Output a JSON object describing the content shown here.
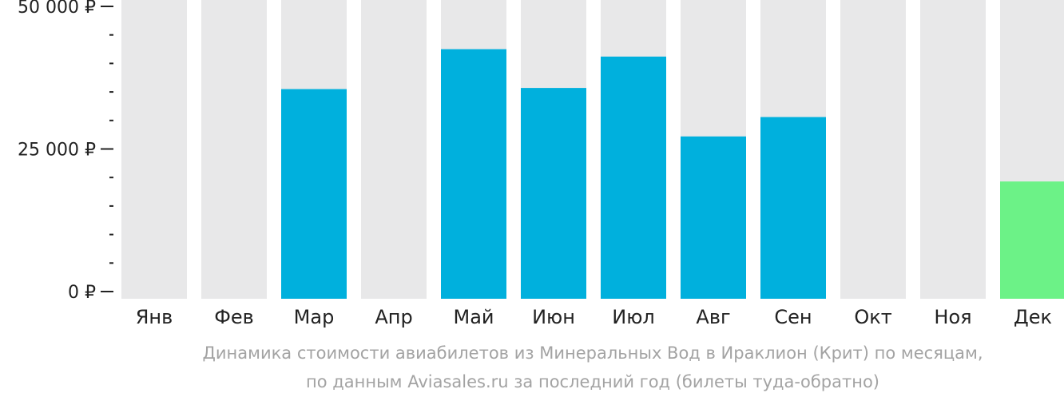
{
  "chart_data": {
    "type": "bar",
    "categories": [
      "Янв",
      "Фев",
      "Мар",
      "Апр",
      "Май",
      "Июн",
      "Июл",
      "Авг",
      "Сен",
      "Окт",
      "Ноя",
      "Дек"
    ],
    "values": [
      null,
      null,
      35500,
      null,
      42500,
      35700,
      41200,
      27200,
      30600,
      null,
      null,
      19300
    ],
    "ylim": [
      0,
      50000
    ],
    "y_ticks": [
      {
        "value": 0,
        "label": "0 ₽"
      },
      {
        "value": 25000,
        "label": "25 000 ₽"
      },
      {
        "value": 50000,
        "label": "50 000 ₽"
      }
    ],
    "minor_tick_step": 5000,
    "caption_lines": [
      "Динамика стоимости авиабилетов из Минеральных Вод в Ираклион (Крит) по месяцам,",
      "по данным Aviasales.ru за последний год (билеты туда-обратно)"
    ],
    "highlight_index": 11,
    "colors": {
      "bar": "#00b0dd",
      "highlight": "#6cf287",
      "background_column": "#e8e8e9",
      "axis": "#222222",
      "caption": "#a3a3a3"
    },
    "grid": false,
    "legend": "none"
  }
}
